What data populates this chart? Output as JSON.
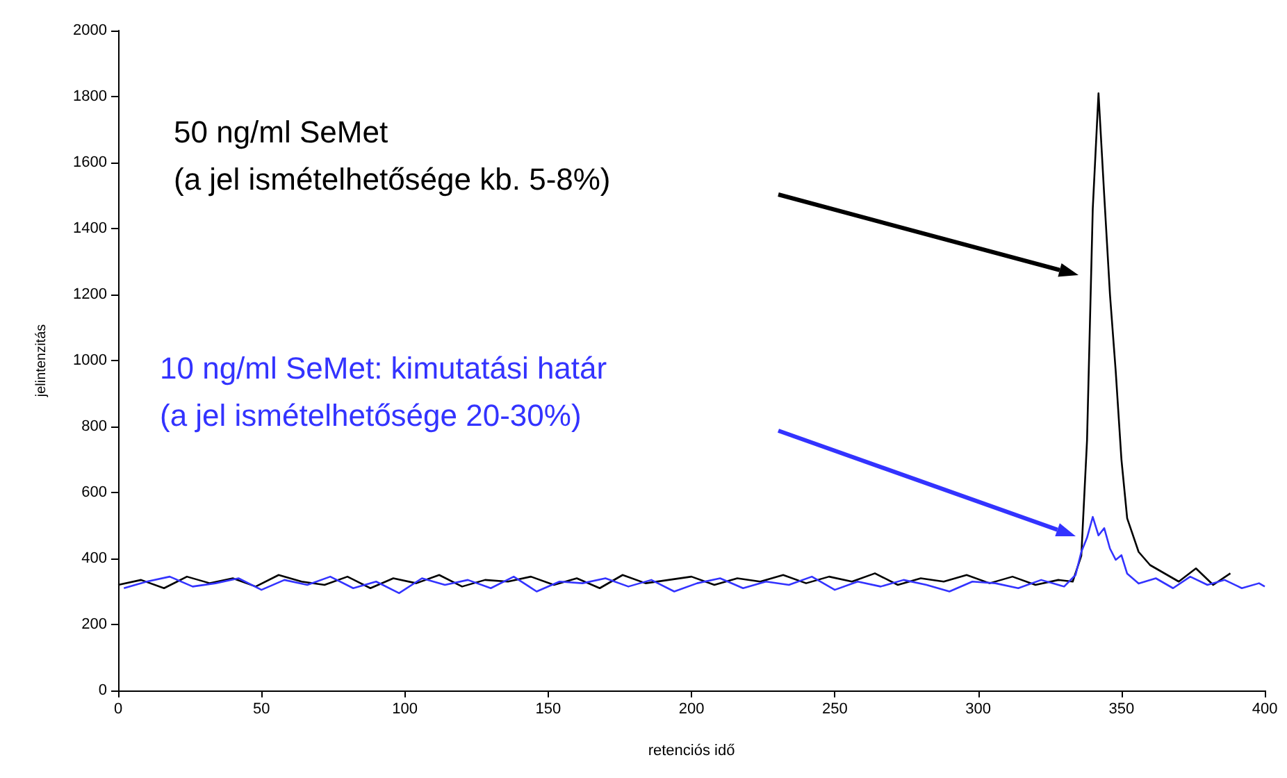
{
  "chart_data": {
    "type": "line",
    "xlabel": "retenciós idő",
    "ylabel": "jelintenzitás",
    "xlim": [
      0,
      400
    ],
    "xticks": [
      0,
      50,
      100,
      150,
      200,
      250,
      300,
      350,
      400
    ],
    "ylim": [
      0,
      2000
    ],
    "yticks": [
      0,
      200,
      400,
      600,
      800,
      1000,
      1200,
      1400,
      1600,
      1800,
      2000
    ],
    "grid": false,
    "marker": "none",
    "line_style": "solid",
    "annotations": [
      "50 ng/ml SeMet\n(a jel ismételhetősége kb. 5-8%)",
      "10 ng/ml SeMet: kimutatási határ\n(a jel ismételhetősége 20-30%)"
    ],
    "series": [
      {
        "color": "#000000",
        "x": [
          0,
          8,
          16,
          24,
          32,
          40,
          48,
          56,
          64,
          72,
          80,
          88,
          96,
          104,
          112,
          120,
          128,
          136,
          144,
          152,
          160,
          168,
          176,
          184,
          192,
          200,
          208,
          216,
          224,
          232,
          240,
          248,
          256,
          264,
          272,
          280,
          288,
          296,
          304,
          312,
          320,
          328,
          333,
          336,
          338,
          340,
          342,
          344,
          346,
          348,
          350,
          352,
          356,
          360,
          364,
          370,
          376,
          382,
          388
        ],
        "values": [
          320,
          335,
          310,
          345,
          325,
          340,
          315,
          350,
          330,
          320,
          345,
          310,
          340,
          325,
          350,
          315,
          335,
          330,
          345,
          320,
          340,
          310,
          350,
          325,
          335,
          345,
          320,
          340,
          330,
          350,
          325,
          345,
          330,
          355,
          320,
          340,
          330,
          350,
          325,
          345,
          320,
          335,
          330,
          408,
          758,
          1460,
          1810,
          1500,
          1200,
          968,
          700,
          522,
          420,
          380,
          360,
          330,
          370,
          320,
          355
        ]
      },
      {
        "color": "#3333ff",
        "x": [
          2,
          10,
          18,
          26,
          34,
          42,
          50,
          58,
          66,
          74,
          82,
          90,
          98,
          106,
          114,
          122,
          130,
          138,
          146,
          154,
          162,
          170,
          178,
          186,
          194,
          202,
          210,
          218,
          226,
          234,
          242,
          250,
          258,
          266,
          274,
          282,
          290,
          298,
          306,
          314,
          322,
          330,
          334,
          336,
          338,
          340,
          342,
          344,
          346,
          348,
          350,
          352,
          356,
          362,
          368,
          374,
          380,
          386,
          392,
          398,
          400
        ],
        "values": [
          310,
          330,
          345,
          315,
          325,
          340,
          305,
          335,
          320,
          345,
          310,
          330,
          295,
          340,
          320,
          335,
          310,
          345,
          300,
          330,
          325,
          340,
          315,
          335,
          300,
          325,
          340,
          310,
          330,
          320,
          345,
          305,
          330,
          315,
          335,
          320,
          300,
          330,
          325,
          310,
          335,
          315,
          350,
          420,
          463,
          526,
          470,
          492,
          430,
          396,
          410,
          354,
          324,
          340,
          310,
          345,
          320,
          335,
          310,
          325,
          315
        ]
      }
    ]
  }
}
